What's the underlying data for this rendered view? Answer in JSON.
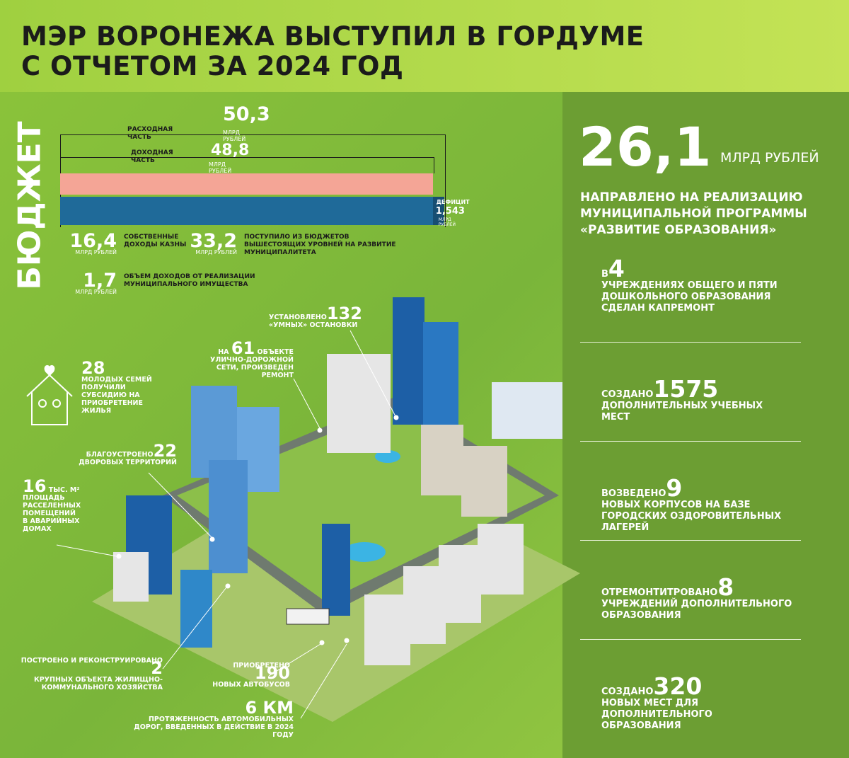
{
  "header": {
    "title_line1": "МЭР ВОРОНЕЖА ВЫСТУПИЛ В ГОРДУМЕ",
    "title_line2": "С ОТЧЕТОМ ЗА 2024 ГОД"
  },
  "budget": {
    "label": "БЮДЖЕТ",
    "expense": {
      "caption": "РАСХОДНАЯ ЧАСТЬ",
      "value": 50.3,
      "label": "50,3",
      "unit": "МЛРД РУБЛЕЙ",
      "color": "#1f6a99"
    },
    "income": {
      "caption": "ДОХОДНАЯ ЧАСТЬ",
      "value": 48.8,
      "label": "48,8",
      "unit": "МЛРД РУБЛЕЙ",
      "color": "#f4a596"
    },
    "deficit": {
      "caption": "ДЕФИЦИТ",
      "value": 1.543,
      "label": "1,543",
      "unit": "МЛРД РУБЛЕЙ"
    },
    "items": [
      {
        "number": "16,4",
        "unit": "МЛРД РУБЛЕЙ",
        "text": "СОБСТВЕННЫЕ ДОХОДЫ КАЗНЫ"
      },
      {
        "number": "33,2",
        "unit": "МЛРД РУБЛЕЙ",
        "text": "ПОСТУПИЛО ИЗ БЮДЖЕТОВ ВЫШЕСТОЯЩИХ УРОВНЕЙ НА РАЗВИТИЕ МУНИЦИПАЛИТЕТА"
      },
      {
        "number": "1,7",
        "unit": "МЛРД РУБЛЕЙ",
        "text": "ОБЪЕМ ДОХОДОВ ОТ РЕАЛИЗАЦИИ МУНИЦИПАЛЬНОГО ИМУЩЕСТВА"
      }
    ]
  },
  "callouts": [
    {
      "prefix": "УСТАНОВЛЕНО",
      "number": "132",
      "text": "«УМНЫХ» ОСТАНОВКИ"
    },
    {
      "prefix": "НА",
      "number": "61",
      "text": "ОБЪЕКТЕ УЛИЧНО-ДОРОЖНОЙ СЕТИ, ПРОИЗВЕДЕН РЕМОНТ"
    },
    {
      "number": "28",
      "text": "МОЛОДЫХ СЕМЕЙ ПОЛУЧИЛИ СУБСИДИЮ НА ПРИОБРЕТЕНИЕ ЖИЛЬЯ"
    },
    {
      "prefix": "БЛАГОУСТРОЕНО",
      "number": "22",
      "text": "ДВОРОВЫХ ТЕРРИТОРИЙ"
    },
    {
      "number": "16",
      "unit": "ТЫС. М²",
      "text": "ПЛОЩАДЬ РАССЕЛЕННЫХ ПОМЕЩЕНИЙ В АВАРИЙНЫХ ДОМАХ"
    },
    {
      "prefix": "ПОСТРОЕНО И РЕКОНСТРУИРОВАНО",
      "number": "2",
      "text": "КРУПНЫХ ОБЪЕКТА ЖИЛИЩНО-КОММУНАЛЬНОГО ХОЗЯЙСТВА"
    },
    {
      "prefix": "ПРИОБРЕТЕНО",
      "number": "190",
      "text": "НОВЫХ АВТОБУСОВ"
    },
    {
      "number": "6 КМ",
      "text": "ПРОТЯЖЕННОСТЬ АВТОМОБИЛЬНЫХ ДОРОГ, ВВЕДЕННЫХ В ДЕЙСТВИЕ В 2024 ГОДУ"
    }
  ],
  "education": {
    "number": "26,1",
    "unit": "МЛРД РУБЛЕЙ",
    "text": "НАПРАВЛЕНО НА РЕАЛИЗАЦИЮ МУНИЦИПАЛЬНОЙ ПРОГРАММЫ «РАЗВИТИЕ ОБРАЗОВАНИЯ»",
    "items": [
      {
        "prefix": "В",
        "number": "4",
        "text": "УЧРЕЖДЕНИЯХ ОБЩЕГО И ПЯТИ ДОШКОЛЬНОГО ОБРАЗОВАНИЯ СДЕЛАН КАПРЕМОНТ"
      },
      {
        "prefix": "СОЗДАНО",
        "number": "1575",
        "text": "ДОПОЛНИТЕЛЬНЫХ УЧЕБНЫХ МЕСТ"
      },
      {
        "prefix": "ВОЗВЕДЕНО",
        "number": "9",
        "text": "НОВЫХ КОРПУСОВ НА БАЗЕ ГОРОДСКИХ ОЗДОРОВИТЕЛЬНЫХ ЛАГЕРЕЙ"
      },
      {
        "prefix": "ОТРЕМОНТИТРОВАНО",
        "number": "8",
        "text": "УЧРЕЖДЕНИЙ ДОПОЛНИТЕЛЬНОГО ОБРАЗОВАНИЯ"
      },
      {
        "prefix": "СОЗДАНО",
        "number": "320",
        "text": "НОВЫХ МЕСТ ДЛЯ ДОПОЛНИТЕЛЬНОГО ОБРАЗОВАНИЯ"
      }
    ]
  }
}
